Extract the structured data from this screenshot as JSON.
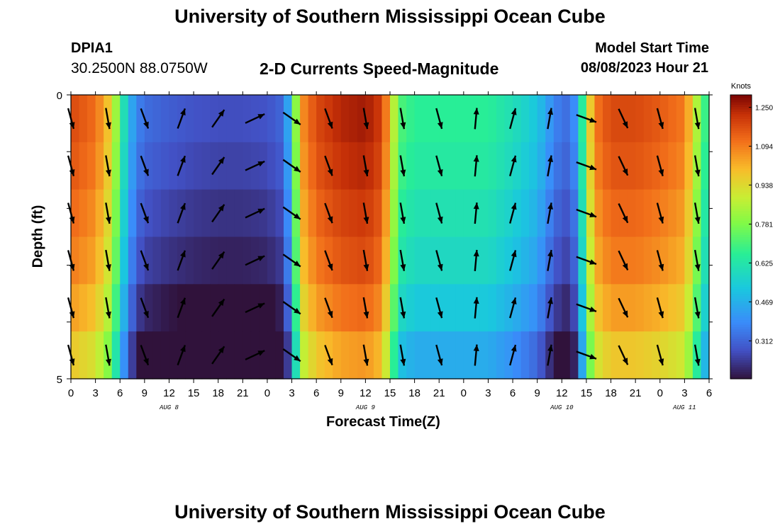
{
  "header": {
    "title": "University of Southern Mississippi Ocean Cube",
    "station": "DPIA1",
    "coordinates": "30.2500N  88.0750W",
    "subtitle": "2-D Currents Speed-Magnitude",
    "model_start_label": "Model Start Time",
    "model_start_value": "08/08/2023 Hour 21"
  },
  "footer": {
    "title": "University of Southern Mississippi Ocean Cube"
  },
  "chart_data": {
    "type": "heatmap",
    "xlabel": "Forecast Time(Z)",
    "ylabel": "Depth (ft)",
    "colorbar_label": "Knots",
    "colorbar_ticks": [
      0.312,
      0.469,
      0.625,
      0.781,
      0.938,
      1.094,
      1.25
    ],
    "colorbar_range": [
      0.16,
      1.3
    ],
    "x_tick_labels": [
      "0",
      "3",
      "6",
      "9",
      "12",
      "15",
      "18",
      "21",
      "0",
      "3",
      "6",
      "9",
      "12",
      "15",
      "18",
      "21",
      "0",
      "3",
      "6",
      "9",
      "12",
      "15",
      "18",
      "21",
      "0",
      "3",
      "6"
    ],
    "x_day_labels": [
      {
        "label": "AUG 8",
        "tick_index": 4
      },
      {
        "label": "AUG 9",
        "tick_index": 12
      },
      {
        "label": "AUG 10",
        "tick_index": 20
      },
      {
        "label": "AUG 11",
        "tick_index": 25
      }
    ],
    "x_range_hours": [
      0,
      78
    ],
    "y_tick_labels": [
      "0",
      "5"
    ],
    "y_range_ft": [
      0,
      5
    ],
    "depth_levels_ft": [
      0,
      1,
      2,
      3,
      4,
      5
    ],
    "speed_time_profile": {
      "hours": [
        0,
        3,
        5,
        6,
        7,
        8,
        9,
        12,
        15,
        18,
        21,
        24,
        26,
        27,
        28,
        30,
        33,
        36,
        38,
        39,
        40,
        42,
        45,
        48,
        51,
        54,
        57,
        58,
        59,
        60,
        61,
        62,
        63,
        64,
        66,
        69,
        72,
        75,
        76,
        77,
        78
      ],
      "knots": [
        1.18,
        1.12,
        0.95,
        0.7,
        0.5,
        0.38,
        0.33,
        0.3,
        0.28,
        0.27,
        0.27,
        0.28,
        0.32,
        0.55,
        1.05,
        1.18,
        1.24,
        1.26,
        1.2,
        1.0,
        0.72,
        0.66,
        0.66,
        0.66,
        0.66,
        0.6,
        0.52,
        0.45,
        0.38,
        0.34,
        0.33,
        0.45,
        0.85,
        1.1,
        1.18,
        1.18,
        1.15,
        1.1,
        0.95,
        0.75,
        0.62
      ]
    },
    "speed_depth_offset_knots": [
      0.0,
      -0.02,
      -0.05,
      -0.08,
      -0.13,
      -0.2
    ],
    "arrows": [
      {
        "hour": 0,
        "dir_deg": 165
      },
      {
        "hour": 4.5,
        "dir_deg": 170
      },
      {
        "hour": 9,
        "dir_deg": 160
      },
      {
        "hour": 13.5,
        "dir_deg": 20
      },
      {
        "hour": 18,
        "dir_deg": 35
      },
      {
        "hour": 22.5,
        "dir_deg": 65
      },
      {
        "hour": 27,
        "dir_deg": 125
      },
      {
        "hour": 31.5,
        "dir_deg": 160
      },
      {
        "hour": 36,
        "dir_deg": 170
      },
      {
        "hour": 40.5,
        "dir_deg": 170
      },
      {
        "hour": 45,
        "dir_deg": 165
      },
      {
        "hour": 49.5,
        "dir_deg": 5
      },
      {
        "hour": 54,
        "dir_deg": 15
      },
      {
        "hour": 58.5,
        "dir_deg": 10
      },
      {
        "hour": 63,
        "dir_deg": 110
      },
      {
        "hour": 67.5,
        "dir_deg": 155
      },
      {
        "hour": 72,
        "dir_deg": 165
      },
      {
        "hour": 76.5,
        "dir_deg": 170
      }
    ]
  }
}
